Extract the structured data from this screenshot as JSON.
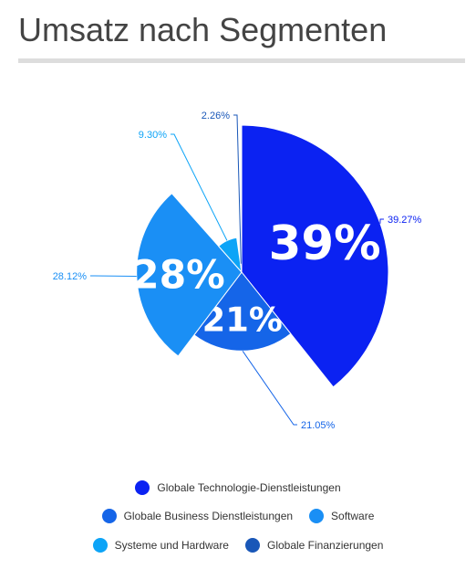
{
  "chart_data": {
    "type": "polar-pie",
    "title": "Umsatz nach Segmenten",
    "categories": [
      "Globale Technologie-Dienstleistungen",
      "Globale Business Dienstleistungen",
      "Software",
      "Systeme und Hardware",
      "Globale Finanzierungen"
    ],
    "values": [
      39.27,
      21.05,
      28.12,
      9.3,
      2.26
    ],
    "value_labels": [
      "39.27%",
      "21.05%",
      "28.12%",
      "9.30%",
      "2.26%"
    ],
    "inner_labels": [
      "39%",
      "21%",
      "28%",
      null,
      null
    ],
    "colors": [
      "#0b22f2",
      "#1565e8",
      "#1a8ff5",
      "#0da4f7",
      "#1957b8"
    ]
  }
}
